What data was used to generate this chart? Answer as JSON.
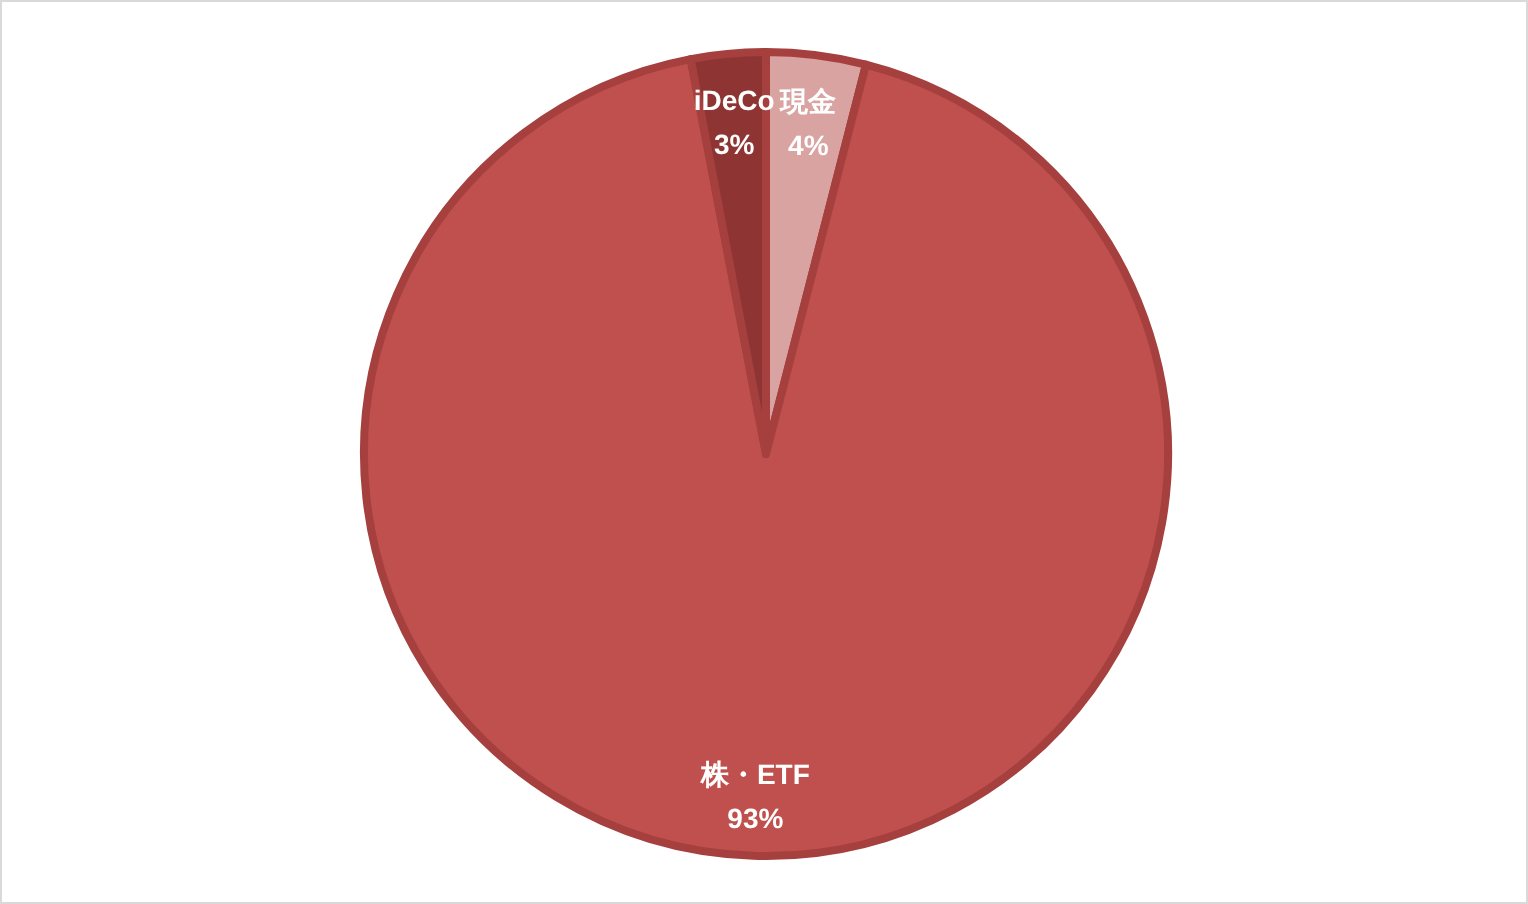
{
  "chart_data": {
    "type": "pie",
    "categories": [
      "現金",
      "株・ETF",
      "iDeCo"
    ],
    "values": [
      4,
      93,
      3
    ],
    "value_labels": [
      "4%",
      "93%",
      "3%"
    ],
    "colors": [
      "#d9a3a2",
      "#c0504d",
      "#8e3533"
    ]
  }
}
